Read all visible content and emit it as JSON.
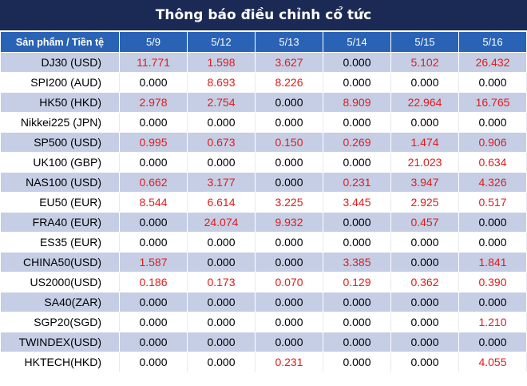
{
  "title": "Thông báo điều chỉnh cổ tức",
  "header": {
    "product_label": "Sản phẩm / Tiền tệ",
    "dates": [
      "5/9",
      "5/12",
      "5/13",
      "5/14",
      "5/15",
      "5/16"
    ]
  },
  "rows": [
    {
      "product": "DJ30 (USD)",
      "values": [
        "11.771",
        "1.598",
        "3.627",
        "0.000",
        "5.102",
        "26.432"
      ]
    },
    {
      "product": "SPI200 (AUD)",
      "values": [
        "0.000",
        "8.693",
        "8.226",
        "0.000",
        "0.000",
        "0.000"
      ]
    },
    {
      "product": "HK50 (HKD)",
      "values": [
        "2.978",
        "2.754",
        "0.000",
        "8.909",
        "22.964",
        "16.765"
      ]
    },
    {
      "product": "Nikkei225 (JPN)",
      "values": [
        "0.000",
        "0.000",
        "0.000",
        "0.000",
        "0.000",
        "0.000"
      ]
    },
    {
      "product": "SP500 (USD)",
      "values": [
        "0.995",
        "0.673",
        "0.150",
        "0.269",
        "1.474",
        "0.906"
      ]
    },
    {
      "product": "UK100 (GBP)",
      "values": [
        "0.000",
        "0.000",
        "0.000",
        "0.000",
        "21.023",
        "0.634"
      ]
    },
    {
      "product": "NAS100 (USD)",
      "values": [
        "0.662",
        "3.177",
        "0.000",
        "0.231",
        "3.947",
        "4.326"
      ]
    },
    {
      "product": "EU50 (EUR)",
      "values": [
        "8.544",
        "6.614",
        "3.225",
        "3.445",
        "2.925",
        "0.517"
      ]
    },
    {
      "product": "FRA40 (EUR)",
      "values": [
        "0.000",
        "24.074",
        "9.932",
        "0.000",
        "0.457",
        "0.000"
      ]
    },
    {
      "product": "ES35 (EUR)",
      "values": [
        "0.000",
        "0.000",
        "0.000",
        "0.000",
        "0.000",
        "0.000"
      ]
    },
    {
      "product": "CHINA50(USD)",
      "values": [
        "1.587",
        "0.000",
        "0.000",
        "3.385",
        "0.000",
        "1.841"
      ]
    },
    {
      "product": "US2000(USD)",
      "values": [
        "0.186",
        "0.173",
        "0.070",
        "0.129",
        "0.362",
        "0.390"
      ]
    },
    {
      "product": "SA40(ZAR)",
      "values": [
        "0.000",
        "0.000",
        "0.000",
        "0.000",
        "0.000",
        "0.000"
      ]
    },
    {
      "product": "SGP20(SGD)",
      "values": [
        "0.000",
        "0.000",
        "0.000",
        "0.000",
        "0.000",
        "1.210"
      ]
    },
    {
      "product": "TWINDEX(USD)",
      "values": [
        "0.000",
        "0.000",
        "0.000",
        "0.000",
        "0.000",
        "0.000"
      ]
    },
    {
      "product": "HKTECH(HKD)",
      "values": [
        "0.000",
        "0.000",
        "0.231",
        "0.000",
        "0.000",
        "4.055"
      ]
    }
  ],
  "colors": {
    "title_bg": "#1b2a55",
    "header_bg": "#2a63b5",
    "stripe_bg": "#c5cee5",
    "positive_value": "#e31b1b",
    "zero_value": "#000000"
  }
}
